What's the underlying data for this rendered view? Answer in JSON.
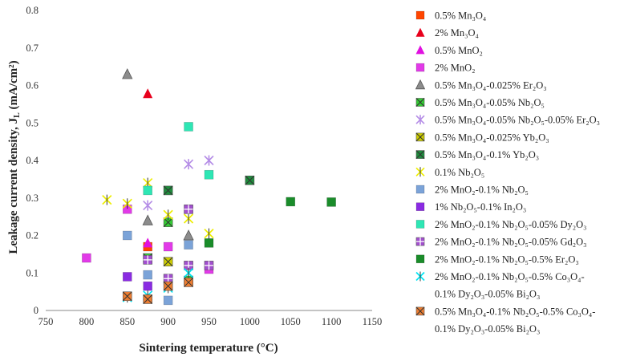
{
  "chart_data": {
    "type": "scatter",
    "xlabel": "Sintering temperature (°C)",
    "ylabel": "Leakage current density, J<sub>L</sub> (mA/cm²)",
    "ylabel_main": "Leakage current density, J",
    "ylabel_sub": "L",
    "ylabel_unit": " (mA/cm²)",
    "xlim": [
      750,
      1150
    ],
    "ylim": [
      0,
      0.8
    ],
    "x_ticks": [
      "750",
      "800",
      "850",
      "900",
      "950",
      "1000",
      "1050",
      "1100",
      "1150"
    ],
    "y_ticks": [
      "0",
      "0.1",
      "0.2",
      "0.3",
      "0.4",
      "0.5",
      "0.6",
      "0.7",
      "0.8"
    ],
    "grid": false,
    "legend_position": "right",
    "series": [
      {
        "name": "0.5% Mn₃O₄",
        "marker": "square",
        "color": "#ff4500",
        "points": [
          [
            875,
            0.17
          ]
        ]
      },
      {
        "name": "2% Mn₃O₄",
        "marker": "triangle",
        "color": "#e8001c",
        "points": [
          [
            875,
            0.578
          ]
        ]
      },
      {
        "name": "0.5% MnO₂",
        "marker": "triangle",
        "color": "#e010e0",
        "points": [
          [
            875,
            0.18
          ]
        ]
      },
      {
        "name": "2% MnO₂",
        "marker": "square",
        "color": "#e23ae8",
        "points": [
          [
            800,
            0.14
          ],
          [
            850,
            0.27
          ],
          [
            900,
            0.17
          ],
          [
            950,
            0.11
          ]
        ]
      },
      {
        "name": "0.5% Mn₃O₄-0.025% Er₂O₃",
        "marker": "triangle",
        "color": "#8c8c8c",
        "points": [
          [
            850,
            0.63
          ],
          [
            875,
            0.24
          ],
          [
            925,
            0.2
          ]
        ]
      },
      {
        "name": "0.5% Mn₃O₄-0.05% Nb₂O₅",
        "marker": "xsquare",
        "color": "#33cc33",
        "points": [
          [
            875,
            0.14
          ],
          [
            900,
            0.235
          ],
          [
            925,
            0.08
          ]
        ]
      },
      {
        "name": "0.5% Mn₃O₄-0.05% Nb₂O₅-0.05% Er₂O₃",
        "marker": "star",
        "color": "#b48ce6",
        "points": [
          [
            875,
            0.28
          ],
          [
            925,
            0.39
          ],
          [
            950,
            0.4
          ]
        ]
      },
      {
        "name": "0.5% Mn₃O₄-0.025% Yb₂O₃",
        "marker": "xsquare",
        "color": "#cccc00",
        "points": [
          [
            900,
            0.13
          ]
        ]
      },
      {
        "name": "0.5% Mn₃O₄-0.1% Yb₂O₃",
        "marker": "xsquare",
        "color": "#1e8c3c",
        "points": [
          [
            900,
            0.32
          ],
          [
            1000,
            0.347
          ]
        ]
      },
      {
        "name": "0.1% Nb₂O₅",
        "marker": "xstar",
        "color": "#eeee00",
        "points": [
          [
            825,
            0.295
          ],
          [
            850,
            0.285
          ],
          [
            875,
            0.34
          ],
          [
            900,
            0.255
          ],
          [
            925,
            0.245
          ],
          [
            950,
            0.205
          ]
        ]
      },
      {
        "name": "2% MnO₂-0.1% Nb₂O₅",
        "marker": "square",
        "color": "#7ba3d8",
        "points": [
          [
            850,
            0.2
          ],
          [
            875,
            0.095
          ],
          [
            900,
            0.027
          ],
          [
            925,
            0.175
          ]
        ]
      },
      {
        "name": "1% Nb₂O₅-0.1% In₂O₃",
        "marker": "square",
        "color": "#8a2be2",
        "points": [
          [
            850,
            0.09
          ],
          [
            875,
            0.065
          ]
        ]
      },
      {
        "name": "2% MnO₂-0.1% Nb₂O₅-0.05% Dy₂O₃",
        "marker": "square",
        "color": "#2ee6b4",
        "points": [
          [
            875,
            0.32
          ],
          [
            925,
            0.49
          ],
          [
            950,
            0.362
          ]
        ]
      },
      {
        "name": "2% MnO₂-0.1% Nb₂O₅-0.05% Gd₂O₃",
        "marker": "plussquare",
        "color": "#a24fcf",
        "points": [
          [
            875,
            0.135
          ],
          [
            900,
            0.085
          ],
          [
            925,
            0.27
          ],
          [
            925,
            0.12
          ],
          [
            950,
            0.12
          ]
        ]
      },
      {
        "name": "2% MnO₂-0.1% Nb₂O₅-0.5% Er₂O₃",
        "marker": "square",
        "color": "#1a8c2a",
        "points": [
          [
            950,
            0.18
          ],
          [
            1050,
            0.29
          ],
          [
            1100,
            0.289
          ]
        ]
      },
      {
        "name": "2% MnO₂-0.1% Nb₂O₅-0.5% Co₃O₄-0.1% Dy₂O₃-0.05% Bi₂O₃",
        "marker": "xstar",
        "color": "#00e5f2",
        "points": [
          [
            850,
            0.035
          ],
          [
            875,
            0.04
          ],
          [
            900,
            0.06
          ],
          [
            925,
            0.1
          ]
        ]
      },
      {
        "name": "0.5% Mn₃O₄-0.1% Nb₂O₅-0.5% Co₃O₄-0.1% Dy₂O₃-0.05% Bi₂O₃",
        "marker": "xsquare",
        "color": "#ed7d31",
        "points": [
          [
            850,
            0.038
          ],
          [
            875,
            0.03
          ],
          [
            900,
            0.065
          ],
          [
            925,
            0.075
          ]
        ]
      }
    ],
    "legend": [
      {
        "lines": [
          "0.5% Mn₃O₄"
        ]
      },
      {
        "lines": [
          "2% Mn₃O₄"
        ]
      },
      {
        "lines": [
          "0.5% MnO₂"
        ]
      },
      {
        "lines": [
          "2% MnO₂"
        ]
      },
      {
        "lines": [
          "0.5% Mn₃O₄-0.025% Er₂O₃"
        ]
      },
      {
        "lines": [
          "0.5% Mn₃O₄-0.05% Nb₂O₅"
        ]
      },
      {
        "lines": [
          "0.5% Mn₃O₄-0.05% Nb₂O₅-0.05% Er₂O₃"
        ]
      },
      {
        "lines": [
          "0.5% Mn₃O₄-0.025% Yb₂O₃"
        ]
      },
      {
        "lines": [
          "0.5% Mn₃O₄-0.1% Yb₂O₃"
        ]
      },
      {
        "lines": [
          "0.1% Nb₂O₅"
        ]
      },
      {
        "lines": [
          "2% MnO₂-0.1% Nb₂O₅"
        ]
      },
      {
        "lines": [
          "1% Nb₂O₅-0.1% In₂O₃"
        ]
      },
      {
        "lines": [
          "2% MnO₂-0.1% Nb₂O₅-0.05% Dy₂O₃"
        ]
      },
      {
        "lines": [
          "2% MnO₂-0.1% Nb₂O₅-0.05% Gd₂O₃"
        ]
      },
      {
        "lines": [
          "2% MnO₂-0.1% Nb₂O₅-0.5% Er₂O₃"
        ]
      },
      {
        "lines": [
          "2% MnO₂-0.1% Nb₂O₅-0.5% Co₃O₄-",
          "0.1% Dy₂O₃-0.05% Bi₂O₃"
        ]
      },
      {
        "lines": [
          "0.5% Mn₃O₄-0.1% Nb₂O₅-0.5% Co₃O₄-",
          "0.1% Dy₂O₃-0.05% Bi₂O₃"
        ]
      }
    ]
  }
}
